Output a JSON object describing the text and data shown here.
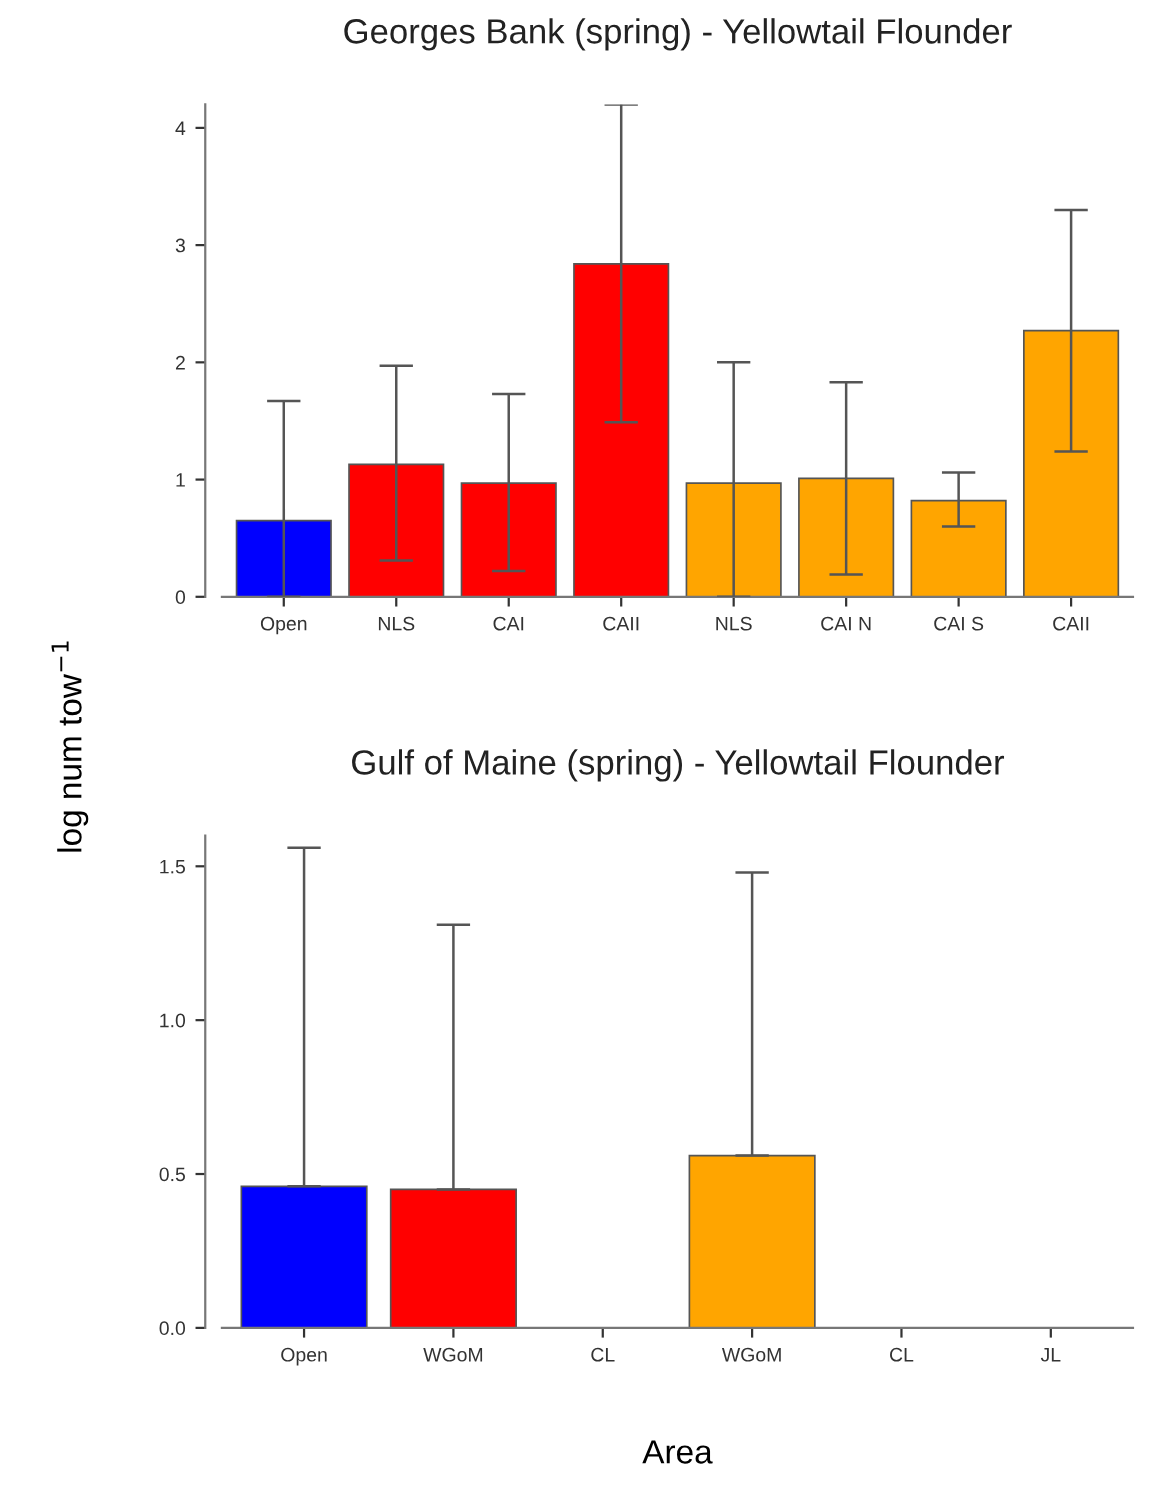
{
  "chart_data": [
    {
      "type": "bar",
      "title": "Georges Bank (spring) - Yellowtail Flounder",
      "ylabel": "log num tow$^{−1}$",
      "categories": [
        "Open",
        "NLS",
        "CAI",
        "CAII",
        "NLS",
        "CAI N",
        "CAI S",
        "CAII"
      ],
      "values": [
        0.65,
        1.13,
        0.97,
        2.84,
        0.97,
        1.01,
        0.82,
        2.27
      ],
      "colors": [
        "#0000ff",
        "#ff0000",
        "#ff0000",
        "#ff0000",
        "#ffa500",
        "#ffa500",
        "#ffa500",
        "#ffa500"
      ],
      "errors": [
        [
          0,
          1.67
        ],
        [
          0.31,
          1.97
        ],
        [
          0.22,
          1.73
        ],
        [
          1.49,
          4.2
        ],
        [
          0,
          2.0
        ],
        [
          0.19,
          1.83
        ],
        [
          0.6,
          1.06
        ],
        [
          1.24,
          3.3
        ]
      ],
      "ylim": [
        0,
        4.2
      ],
      "yticks": [
        0,
        1,
        2,
        3,
        4
      ],
      "grid": false,
      "legend": false
    },
    {
      "type": "bar",
      "title": "Gulf of Maine (spring) - Yellowtail Flounder",
      "xlabel": "Area",
      "categories": [
        "Open",
        "WGoM",
        "CL",
        "WGoM",
        "CL",
        "JL"
      ],
      "values": [
        0.46,
        0.45,
        0,
        0.56,
        0,
        0
      ],
      "colors": [
        "#0000ff",
        "#ff0000",
        "#ff0000",
        "#ffa500",
        "#ffa500",
        "#ffa500"
      ],
      "errors": [
        [
          0.46,
          1.56
        ],
        [
          0.45,
          1.31
        ],
        null,
        [
          0.56,
          1.48
        ],
        null,
        null
      ],
      "ylim": [
        0,
        1.6
      ],
      "yticks": [
        {
          "value": 0,
          "label": "0.0"
        },
        0.5,
        {
          "value": 1,
          "label": "1.0"
        },
        1.5
      ],
      "grid": false,
      "legend": false
    }
  ]
}
